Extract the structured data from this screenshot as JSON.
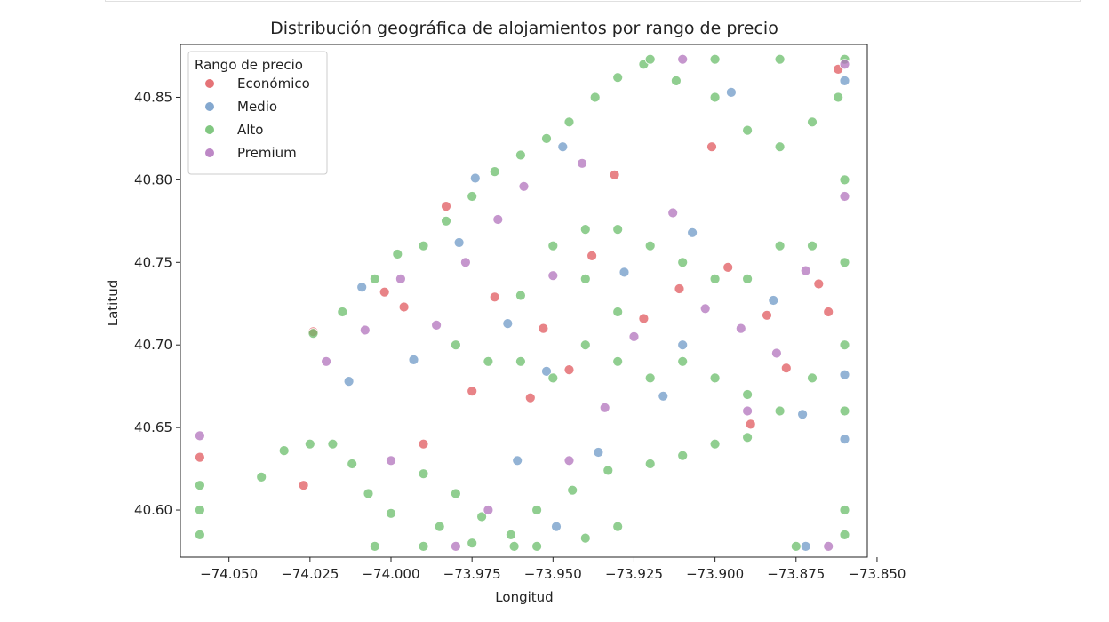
{
  "chart_data": {
    "type": "scatter",
    "title": "Distribución geográfica de alojamientos por rango de precio",
    "xlabel": "Longitud",
    "ylabel": "Latitud",
    "xlim": [
      -74.065,
      -73.853
    ],
    "ylim": [
      40.5715,
      40.882
    ],
    "xticks": [
      -74.05,
      -74.025,
      -74.0,
      -73.975,
      -73.95,
      -73.925,
      -73.9,
      -73.875,
      -73.85
    ],
    "xtick_labels": [
      "−74.050",
      "−74.025",
      "−74.000",
      "−73.975",
      "−73.950",
      "−73.925",
      "−73.900",
      "−73.875",
      "−73.850"
    ],
    "yticks": [
      40.6,
      40.65,
      40.7,
      40.75,
      40.8,
      40.85
    ],
    "ytick_labels": [
      "40.60",
      "40.65",
      "40.70",
      "40.75",
      "40.80",
      "40.85"
    ],
    "grid": false,
    "legend": {
      "title": "Rango de precio",
      "placement": "top-left",
      "entries": [
        "Económico",
        "Medio",
        "Alto",
        "Premium"
      ]
    },
    "series": [
      {
        "name": "Económico",
        "color": "#e05a5f",
        "values": [
          [
            -74.024,
            40.708
          ],
          [
            -74.027,
            40.615
          ],
          [
            -74.002,
            40.732
          ],
          [
            -73.996,
            40.723
          ],
          [
            -73.983,
            40.784
          ],
          [
            -73.968,
            40.729
          ],
          [
            -73.957,
            40.668
          ],
          [
            -73.945,
            40.685
          ],
          [
            -73.938,
            40.754
          ],
          [
            -73.922,
            40.716
          ],
          [
            -73.911,
            40.734
          ],
          [
            -73.901,
            40.82
          ],
          [
            -73.896,
            40.747
          ],
          [
            -73.884,
            40.718
          ],
          [
            -73.878,
            40.686
          ],
          [
            -73.868,
            40.737
          ],
          [
            -73.862,
            40.867
          ],
          [
            -74.059,
            40.632
          ],
          [
            -73.975,
            40.672
          ],
          [
            -73.953,
            40.71
          ],
          [
            -73.931,
            40.803
          ],
          [
            -73.889,
            40.652
          ],
          [
            -73.865,
            40.72
          ],
          [
            -73.99,
            40.64
          ]
        ]
      },
      {
        "name": "Medio",
        "color": "#6f99c7",
        "values": [
          [
            -74.013,
            40.678
          ],
          [
            -74.009,
            40.735
          ],
          [
            -73.993,
            40.691
          ],
          [
            -73.979,
            40.762
          ],
          [
            -73.974,
            40.801
          ],
          [
            -73.964,
            40.713
          ],
          [
            -73.952,
            40.684
          ],
          [
            -73.947,
            40.82
          ],
          [
            -73.936,
            40.635
          ],
          [
            -73.928,
            40.744
          ],
          [
            -73.916,
            40.669
          ],
          [
            -73.907,
            40.768
          ],
          [
            -73.895,
            40.853
          ],
          [
            -73.882,
            40.727
          ],
          [
            -73.873,
            40.658
          ],
          [
            -73.86,
            40.682
          ],
          [
            -73.86,
            40.643
          ],
          [
            -73.86,
            40.86
          ],
          [
            -73.949,
            40.59
          ],
          [
            -73.961,
            40.63
          ],
          [
            -73.91,
            40.7
          ],
          [
            -73.872,
            40.578
          ]
        ]
      },
      {
        "name": "Alto",
        "color": "#6bbd6b",
        "values": [
          [
            -74.04,
            40.62
          ],
          [
            -74.033,
            40.636
          ],
          [
            -74.025,
            40.64
          ],
          [
            -74.018,
            40.64
          ],
          [
            -74.012,
            40.628
          ],
          [
            -74.007,
            40.61
          ],
          [
            -74.0,
            40.598
          ],
          [
            -73.99,
            40.622
          ],
          [
            -73.98,
            40.61
          ],
          [
            -73.972,
            40.596
          ],
          [
            -73.963,
            40.585
          ],
          [
            -73.955,
            40.6
          ],
          [
            -73.944,
            40.612
          ],
          [
            -73.933,
            40.624
          ],
          [
            -73.92,
            40.628
          ],
          [
            -73.91,
            40.633
          ],
          [
            -73.9,
            40.64
          ],
          [
            -73.89,
            40.644
          ],
          [
            -74.024,
            40.707
          ],
          [
            -74.015,
            40.72
          ],
          [
            -74.005,
            40.74
          ],
          [
            -73.998,
            40.755
          ],
          [
            -73.99,
            40.76
          ],
          [
            -73.983,
            40.775
          ],
          [
            -73.975,
            40.79
          ],
          [
            -73.968,
            40.805
          ],
          [
            -73.96,
            40.815
          ],
          [
            -73.952,
            40.825
          ],
          [
            -73.945,
            40.835
          ],
          [
            -73.937,
            40.85
          ],
          [
            -73.93,
            40.862
          ],
          [
            -73.922,
            40.87
          ],
          [
            -73.912,
            40.86
          ],
          [
            -73.9,
            40.85
          ],
          [
            -73.89,
            40.83
          ],
          [
            -73.88,
            40.82
          ],
          [
            -73.87,
            40.835
          ],
          [
            -73.862,
            40.85
          ],
          [
            -73.86,
            40.8
          ],
          [
            -73.86,
            40.75
          ],
          [
            -73.86,
            40.7
          ],
          [
            -73.86,
            40.66
          ],
          [
            -73.98,
            40.7
          ],
          [
            -73.97,
            40.69
          ],
          [
            -73.96,
            40.69
          ],
          [
            -73.95,
            40.68
          ],
          [
            -73.94,
            40.7
          ],
          [
            -73.93,
            40.69
          ],
          [
            -73.92,
            40.68
          ],
          [
            -73.91,
            40.69
          ],
          [
            -73.9,
            40.68
          ],
          [
            -73.89,
            40.67
          ],
          [
            -73.88,
            40.66
          ],
          [
            -73.87,
            40.68
          ],
          [
            -73.96,
            40.73
          ],
          [
            -73.95,
            40.76
          ],
          [
            -73.94,
            40.77
          ],
          [
            -73.93,
            40.77
          ],
          [
            -73.92,
            40.76
          ],
          [
            -73.91,
            40.75
          ],
          [
            -73.9,
            40.74
          ],
          [
            -73.89,
            40.74
          ],
          [
            -73.88,
            40.76
          ],
          [
            -73.87,
            40.76
          ],
          [
            -73.94,
            40.74
          ],
          [
            -73.93,
            40.72
          ],
          [
            -74.059,
            40.6
          ],
          [
            -74.059,
            40.615
          ],
          [
            -74.059,
            40.585
          ],
          [
            -73.86,
            40.6
          ],
          [
            -73.86,
            40.585
          ],
          [
            -73.86,
            40.873
          ],
          [
            -73.88,
            40.873
          ],
          [
            -73.9,
            40.873
          ],
          [
            -73.92,
            40.873
          ],
          [
            -73.99,
            40.578
          ],
          [
            -74.005,
            40.578
          ],
          [
            -73.985,
            40.59
          ],
          [
            -73.975,
            40.58
          ],
          [
            -73.962,
            40.578
          ],
          [
            -73.955,
            40.578
          ],
          [
            -73.94,
            40.583
          ],
          [
            -73.93,
            40.59
          ],
          [
            -73.875,
            40.578
          ]
        ]
      },
      {
        "name": "Premium",
        "color": "#b173bc",
        "values": [
          [
            -74.02,
            40.69
          ],
          [
            -74.008,
            40.709
          ],
          [
            -73.997,
            40.74
          ],
          [
            -73.986,
            40.712
          ],
          [
            -73.977,
            40.75
          ],
          [
            -73.967,
            40.776
          ],
          [
            -73.959,
            40.796
          ],
          [
            -73.95,
            40.742
          ],
          [
            -73.941,
            40.81
          ],
          [
            -73.934,
            40.662
          ],
          [
            -73.925,
            40.705
          ],
          [
            -73.913,
            40.78
          ],
          [
            -73.903,
            40.722
          ],
          [
            -73.892,
            40.71
          ],
          [
            -73.881,
            40.695
          ],
          [
            -73.872,
            40.745
          ],
          [
            -73.86,
            40.79
          ],
          [
            -73.86,
            40.87
          ],
          [
            -73.91,
            40.873
          ],
          [
            -73.89,
            40.66
          ],
          [
            -73.945,
            40.63
          ],
          [
            -73.97,
            40.6
          ],
          [
            -74.0,
            40.63
          ],
          [
            -74.059,
            40.645
          ],
          [
            -73.865,
            40.578
          ],
          [
            -73.98,
            40.578
          ]
        ]
      }
    ]
  }
}
